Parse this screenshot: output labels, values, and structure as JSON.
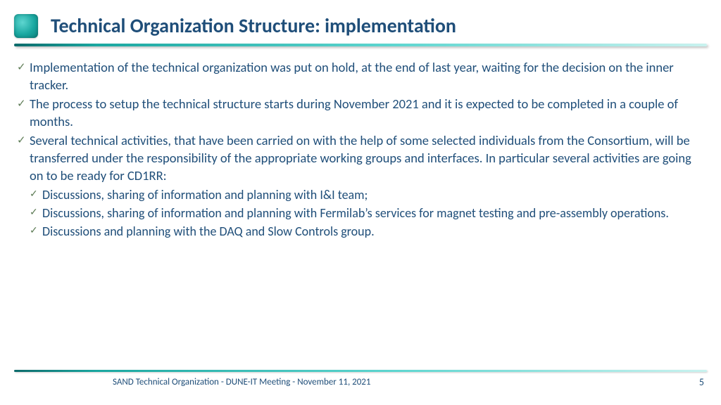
{
  "colors": {
    "text": "#1f4e79",
    "check": "#5f7d57",
    "accent_gradient_start": "#0d6b6b",
    "accent_gradient_mid": "#5ed6d0",
    "accent_gradient_end": "#c9f2ef",
    "background": "#ffffff"
  },
  "typography": {
    "title_fontsize": 28,
    "body_fontsize": 18.5,
    "indent_fontsize": 18,
    "footer_fontsize": 13,
    "family": "Calibri"
  },
  "title": "Technical Organization Structure: implementation",
  "bullets": [
    {
      "level": 0,
      "text": "Implementation of the technical organization was put on hold, at the end of last year, waiting for the decision on the inner tracker."
    },
    {
      "level": 0,
      "text": "The process to setup the technical structure starts during November 2021 and it is expected to be completed in a couple of months."
    },
    {
      "level": 0,
      "text": "Several technical activities, that have been carried on with the help of some selected individuals from the Consortium, will be transferred under the responsibility of the appropriate working groups and interfaces. In particular several activities are going on to be ready for CD1RR:"
    },
    {
      "level": 1,
      "text": "Discussions, sharing of information and planning with I&I team;"
    },
    {
      "level": 1,
      "text": "Discussions, sharing of information and planning with Fermilab’s services for magnet testing and pre-assembly operations."
    },
    {
      "level": 1,
      "text": "Discussions and planning with the DAQ and Slow Controls group."
    }
  ],
  "footer": {
    "text": "SAND Technical Organization - DUNE-IT Meeting - November 11, 2021",
    "page": "5"
  }
}
